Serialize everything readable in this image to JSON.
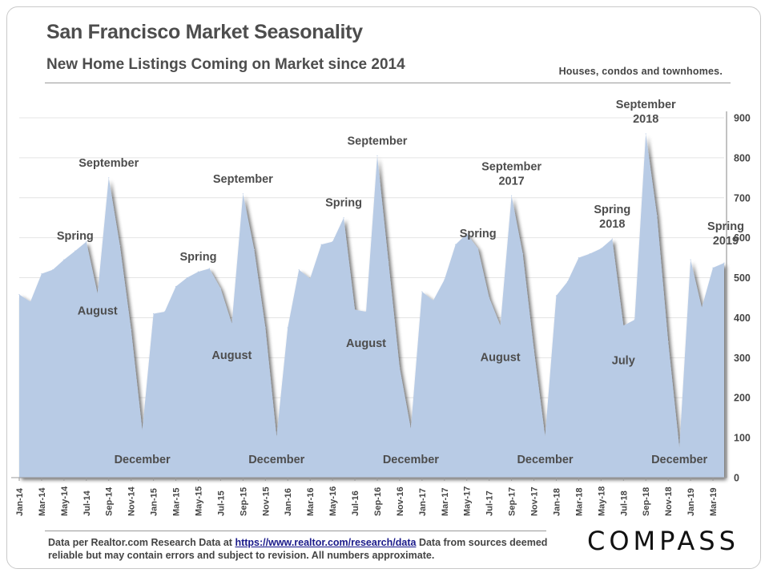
{
  "header": {
    "title": "San Francisco Market Seasonality",
    "subtitle": "New Home Listings Coming on Market since 2014",
    "note": "Houses, condos and townhomes."
  },
  "footer": {
    "source_prefix": "Data per Realtor.com Research Data at",
    "source_link": "https://www.realtor.com/research/data",
    "source_suffix": "Data from sources deemed reliable but may contain errors and subject to revision.  All numbers  approximate.",
    "logo": "COMPASS"
  },
  "colors": {
    "area_fill": "#b8cbe5",
    "area_shadow": "#9a9ea6",
    "text": "#4d4d4d",
    "grid": "#e4e4e4"
  },
  "chart_data": {
    "type": "area",
    "title": "San Francisco Market Seasonality",
    "subtitle": "New Home Listings Coming on Market since 2014",
    "xlabel": "",
    "ylabel": "",
    "ylim": [
      0,
      900
    ],
    "yticks": [
      0,
      100,
      200,
      300,
      400,
      500,
      600,
      700,
      800,
      900
    ],
    "y_axis_side": "right",
    "grid": true,
    "x_tick_labels": [
      "Jan-14",
      "Mar-14",
      "May-14",
      "Jul-14",
      "Sep-14",
      "Nov-14",
      "Jan-15",
      "Mar-15",
      "May-15",
      "Jul-15",
      "Sep-15",
      "Nov-15",
      "Jan-16",
      "Mar-16",
      "May-16",
      "Jul-16",
      "Sep-16",
      "Nov-16",
      "Jan-17",
      "Mar-17",
      "May-17",
      "Jul-17",
      "Sep-17",
      "Nov-17",
      "Jan-18",
      "Mar-18",
      "May-18",
      "Jul-18",
      "Sep-18",
      "Nov-18",
      "Jan-19",
      "Mar-19"
    ],
    "months": [
      "Jan-14",
      "Feb-14",
      "Mar-14",
      "Apr-14",
      "May-14",
      "Jun-14",
      "Jul-14",
      "Aug-14",
      "Sep-14",
      "Oct-14",
      "Nov-14",
      "Dec-14",
      "Jan-15",
      "Feb-15",
      "Mar-15",
      "Apr-15",
      "May-15",
      "Jun-15",
      "Jul-15",
      "Aug-15",
      "Sep-15",
      "Oct-15",
      "Nov-15",
      "Dec-15",
      "Jan-16",
      "Feb-16",
      "Mar-16",
      "Apr-16",
      "May-16",
      "Jun-16",
      "Jul-16",
      "Aug-16",
      "Sep-16",
      "Oct-16",
      "Nov-16",
      "Dec-16",
      "Jan-17",
      "Feb-17",
      "Mar-17",
      "Apr-17",
      "May-17",
      "Jun-17",
      "Jul-17",
      "Aug-17",
      "Sep-17",
      "Oct-17",
      "Nov-17",
      "Dec-17",
      "Jan-18",
      "Feb-18",
      "Mar-18",
      "Apr-18",
      "May-18",
      "Jun-18",
      "Jul-18",
      "Aug-18",
      "Sep-18",
      "Oct-18",
      "Nov-18",
      "Dec-18",
      "Jan-19",
      "Feb-19",
      "Mar-19",
      "Apr-19"
    ],
    "values": [
      458,
      440,
      510,
      520,
      545,
      567,
      590,
      460,
      750,
      580,
      370,
      118,
      410,
      415,
      478,
      500,
      515,
      523,
      473,
      385,
      710,
      570,
      375,
      102,
      375,
      520,
      498,
      583,
      590,
      650,
      420,
      415,
      805,
      540,
      275,
      122,
      465,
      443,
      495,
      583,
      610,
      573,
      450,
      380,
      705,
      560,
      320,
      103,
      455,
      490,
      550,
      560,
      573,
      597,
      380,
      395,
      860,
      655,
      340,
      75,
      545,
      425,
      525,
      537
    ],
    "annotations": [
      {
        "label": "Spring",
        "month": 5
      },
      {
        "label": "August",
        "month": 7
      },
      {
        "label": "September",
        "month": 8
      },
      {
        "label": "December",
        "month": 11
      },
      {
        "label": "Spring",
        "month": 16
      },
      {
        "label": "August",
        "month": 19
      },
      {
        "label": "September",
        "month": 20
      },
      {
        "label": "December",
        "month": 23
      },
      {
        "label": "Spring",
        "month": 29
      },
      {
        "label": "August",
        "month": 31
      },
      {
        "label": "September",
        "month": 32
      },
      {
        "label": "December",
        "month": 35
      },
      {
        "label": "Spring",
        "month": 41
      },
      {
        "label": "August",
        "month": 43
      },
      {
        "label": "September 2017",
        "month": 44
      },
      {
        "label": "December",
        "month": 47
      },
      {
        "label": "Spring 2018",
        "month": 53
      },
      {
        "label": "July",
        "month": 54
      },
      {
        "label": "September 2018",
        "month": 56
      },
      {
        "label": "December",
        "month": 59
      },
      {
        "label": "Spring 2019",
        "month": 63
      }
    ]
  }
}
